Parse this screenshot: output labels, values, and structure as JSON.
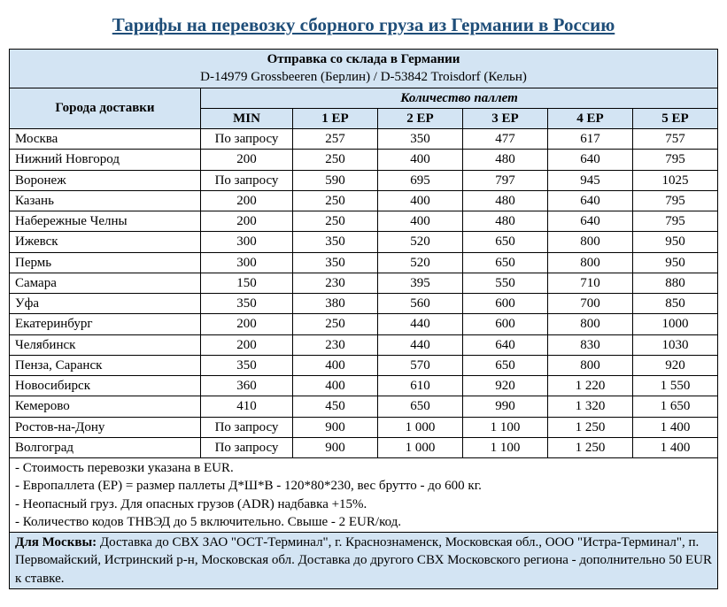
{
  "colors": {
    "title": "#1f4e79",
    "header_bg": "#d3e4f3",
    "border": "#000000",
    "text": "#000000",
    "page_bg": "#ffffff"
  },
  "typography": {
    "font_family": "Times New Roman",
    "title_fontsize": 21,
    "body_fontsize": 15
  },
  "title": "Тарифы на перевозку сборного груза из Германии в Россию",
  "header": {
    "origin_title": "Отправка со склада в Германии",
    "origin_detail": "D-14979 Grossbeeren (Берлин) / D-53842 Troisdorf (Кельн)",
    "cities_col": "Города доставки",
    "pallets_title": "Количество паллет",
    "columns": [
      "MIN",
      "1 EP",
      "2 EP",
      "3 EP",
      "4 EP",
      "5 EP"
    ]
  },
  "rows": [
    {
      "city": "Москва",
      "vals": [
        "По запросу",
        "257",
        "350",
        "477",
        "617",
        "757"
      ]
    },
    {
      "city": "Нижний Новгород",
      "vals": [
        "200",
        "250",
        "400",
        "480",
        "640",
        "795"
      ]
    },
    {
      "city": "Воронеж",
      "vals": [
        "По запросу",
        "590",
        "695",
        "797",
        "945",
        "1025"
      ]
    },
    {
      "city": "Казань",
      "vals": [
        "200",
        "250",
        "400",
        "480",
        "640",
        "795"
      ]
    },
    {
      "city": "Набережные Челны",
      "vals": [
        "200",
        "250",
        "400",
        "480",
        "640",
        "795"
      ]
    },
    {
      "city": "Ижевск",
      "vals": [
        "300",
        "350",
        "520",
        "650",
        "800",
        "950"
      ]
    },
    {
      "city": "Пермь",
      "vals": [
        "300",
        "350",
        "520",
        "650",
        "800",
        "950"
      ]
    },
    {
      "city": "Самара",
      "vals": [
        "150",
        "230",
        "395",
        "550",
        "710",
        "880"
      ]
    },
    {
      "city": "Уфа",
      "vals": [
        "350",
        "380",
        "560",
        "600",
        "700",
        "850"
      ]
    },
    {
      "city": "Екатеринбург",
      "vals": [
        "200",
        "250",
        "440",
        "600",
        "800",
        "1000"
      ]
    },
    {
      "city": "Челябинск",
      "vals": [
        "200",
        "230",
        "440",
        "640",
        "830",
        "1030"
      ]
    },
    {
      "city": "Пенза, Саранск",
      "vals": [
        "350",
        "400",
        "570",
        "650",
        "800",
        "920"
      ]
    },
    {
      "city": "Новосибирск",
      "vals": [
        "360",
        "400",
        "610",
        "920",
        "1 220",
        "1 550"
      ]
    },
    {
      "city": "Кемерово",
      "vals": [
        "410",
        "450",
        "650",
        "990",
        "1 320",
        "1 650"
      ]
    },
    {
      "city": "Ростов-на-Дону",
      "vals": [
        "По запросу",
        "900",
        "1 000",
        "1 100",
        "1 250",
        "1 400"
      ]
    },
    {
      "city": "Волгоград",
      "vals": [
        "По запросу",
        "900",
        "1 000",
        "1 100",
        "1 250",
        "1 400"
      ]
    }
  ],
  "notes": [
    "- Стоимость перевозки указана в EUR.",
    "- Европаллета (EP) = размер паллеты Д*Ш*В - 120*80*230, вес брутто - до 600 кг.",
    "- Неопасный груз. Для опасных грузов (ADR) надбавка +15%.",
    "- Количество кодов ТНВЭД до 5 включительно. Свыше - 2 EUR/код."
  ],
  "footnote": {
    "bold": "Для Москвы: ",
    "text": "Доставка до СВХ  ЗАО \"ОСТ-Терминал\", г. Краснознаменск, Московская обл., ООО \"Истра-Терминал\", п. Первомайский,  Истринский р-н, Московская обл. Доставка до другого СВХ Московского региона - дополнительно 50 EUR к ставке."
  },
  "table": {
    "type": "table",
    "col_widths_pct": [
      27,
      13,
      12,
      12,
      12,
      12,
      12
    ],
    "city_align": "left",
    "value_align": "center"
  }
}
